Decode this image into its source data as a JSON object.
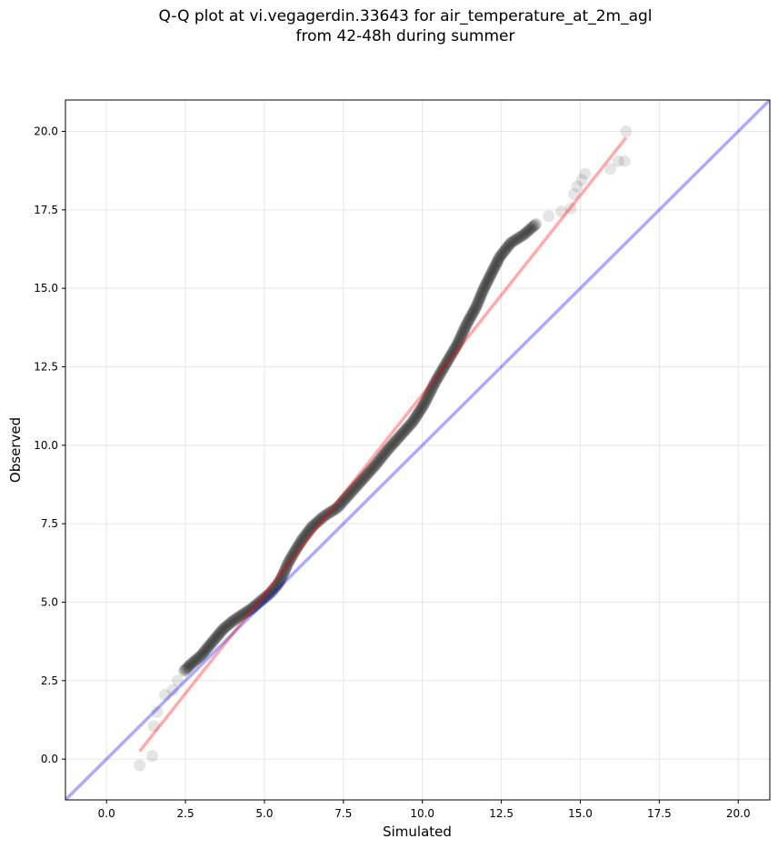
{
  "chart_data": {
    "type": "scatter",
    "title_lines": [
      "Q-Q plot at vi.vegagerdin.33643 for air_temperature_at_2m_agl",
      "from 42-48h during summer"
    ],
    "xlabel": "Simulated",
    "ylabel": "Observed",
    "xlim": [
      -1.3,
      21.0
    ],
    "ylim": [
      -1.3,
      21.0
    ],
    "x_ticks": [
      0.0,
      2.5,
      5.0,
      7.5,
      10.0,
      12.5,
      15.0,
      17.5,
      20.0
    ],
    "x_tick_labels": [
      "0.0",
      "2.5",
      "5.0",
      "7.5",
      "10.0",
      "12.5",
      "15.0",
      "17.5",
      "20.0"
    ],
    "y_ticks": [
      0.0,
      2.5,
      5.0,
      7.5,
      10.0,
      12.5,
      15.0,
      17.5,
      20.0
    ],
    "y_tick_labels": [
      "0.0",
      "2.5",
      "5.0",
      "7.5",
      "10.0",
      "12.5",
      "15.0",
      "17.5",
      "20.0"
    ],
    "grid": true,
    "marker_color": "#000000",
    "identity_line_color": "#0000ff",
    "fit_line_color": "#ff0000",
    "identity_line": [
      [
        -1.3,
        -1.3
      ],
      [
        21.0,
        21.0
      ]
    ],
    "fit_line": [
      [
        1.05,
        0.25
      ],
      [
        16.45,
        19.8
      ]
    ],
    "curve_points": [
      [
        1.05,
        -0.2
      ],
      [
        1.45,
        0.1
      ],
      [
        1.5,
        1.05
      ],
      [
        1.6,
        1.5
      ],
      [
        1.85,
        2.05
      ],
      [
        2.1,
        2.2
      ],
      [
        2.25,
        2.5
      ],
      [
        2.45,
        2.8
      ],
      [
        2.7,
        3.05
      ],
      [
        3.0,
        3.3
      ],
      [
        3.2,
        3.55
      ],
      [
        3.45,
        3.85
      ],
      [
        3.7,
        4.15
      ],
      [
        4.0,
        4.4
      ],
      [
        4.3,
        4.6
      ],
      [
        4.6,
        4.8
      ],
      [
        4.9,
        5.05
      ],
      [
        5.2,
        5.3
      ],
      [
        5.45,
        5.6
      ],
      [
        5.6,
        5.9
      ],
      [
        5.75,
        6.25
      ],
      [
        5.95,
        6.6
      ],
      [
        6.2,
        7.0
      ],
      [
        6.5,
        7.4
      ],
      [
        6.9,
        7.75
      ],
      [
        7.3,
        8.0
      ],
      [
        7.7,
        8.45
      ],
      [
        8.1,
        8.9
      ],
      [
        8.5,
        9.35
      ],
      [
        8.9,
        9.85
      ],
      [
        9.3,
        10.3
      ],
      [
        9.7,
        10.75
      ],
      [
        10.05,
        11.3
      ],
      [
        10.4,
        12.0
      ],
      [
        10.75,
        12.6
      ],
      [
        11.1,
        13.2
      ],
      [
        11.4,
        13.85
      ],
      [
        11.7,
        14.4
      ],
      [
        11.95,
        15.0
      ],
      [
        12.2,
        15.5
      ],
      [
        12.45,
        16.0
      ],
      [
        12.8,
        16.45
      ],
      [
        13.2,
        16.7
      ],
      [
        13.6,
        17.05
      ],
      [
        14.0,
        17.3
      ],
      [
        14.4,
        17.45
      ],
      [
        14.7,
        17.55
      ],
      [
        14.8,
        18.0
      ],
      [
        14.9,
        18.25
      ],
      [
        15.05,
        18.45
      ],
      [
        15.15,
        18.65
      ],
      [
        15.95,
        18.8
      ],
      [
        16.2,
        19.05
      ],
      [
        16.4,
        19.05
      ],
      [
        16.45,
        20.0
      ]
    ]
  }
}
